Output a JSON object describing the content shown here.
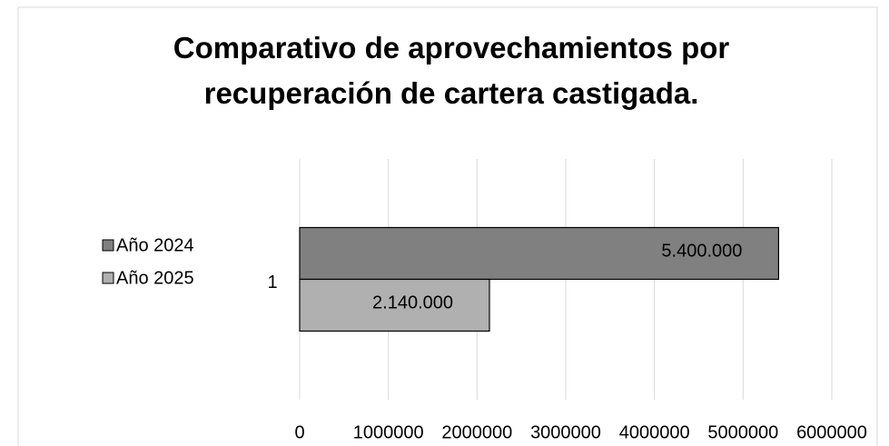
{
  "chart_data": {
    "type": "hbar",
    "title": "Comparativo de aprovechamientos por recuperación de cartera castigada.",
    "categories": [
      "1"
    ],
    "series": [
      {
        "name": "Año 2024",
        "color": "#808080",
        "values": [
          5400000
        ],
        "value_labels": [
          "5.400.000"
        ]
      },
      {
        "name": "Año 2025",
        "color": "#b0b0b0",
        "values": [
          2140000
        ],
        "value_labels": [
          "2.140.000"
        ]
      }
    ],
    "xlim": [
      0,
      6000000
    ],
    "xticks": [
      0,
      1000000,
      2000000,
      3000000,
      4000000,
      5000000,
      6000000
    ],
    "grid": true,
    "legend": "left"
  }
}
